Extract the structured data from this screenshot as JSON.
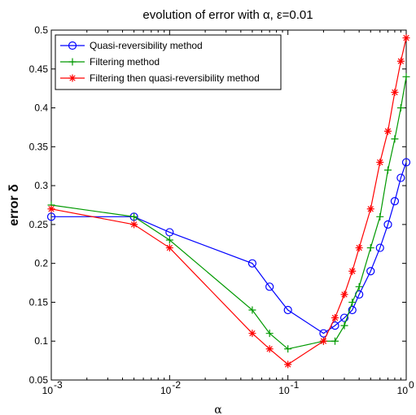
{
  "chart_data": {
    "type": "line",
    "title": "evolution of error with α, ε=0.01",
    "xlabel": "α",
    "ylabel": "error δ",
    "xscale": "log",
    "xlim": [
      0.001,
      1
    ],
    "ylim": [
      0.05,
      0.5
    ],
    "x_ticks": [
      {
        "value": 0.001,
        "base": "10",
        "exp": "-3"
      },
      {
        "value": 0.01,
        "base": "10",
        "exp": "-2"
      },
      {
        "value": 0.1,
        "base": "10",
        "exp": "-1"
      },
      {
        "value": 1,
        "base": "10",
        "exp": "0"
      }
    ],
    "y_ticks": [
      "0.05",
      "0.1",
      "0.15",
      "0.2",
      "0.25",
      "0.3",
      "0.35",
      "0.4",
      "0.45",
      "0.5"
    ],
    "grid": false,
    "legend_position": "top-left",
    "series": [
      {
        "name": "Quasi-reversibility method",
        "color": "#0000ff",
        "marker": "circle",
        "x": [
          0.001,
          0.005,
          0.01,
          0.05,
          0.07,
          0.1,
          0.2,
          0.25,
          0.3,
          0.35,
          0.4,
          0.5,
          0.6,
          0.7,
          0.8,
          0.9,
          1.0
        ],
        "y": [
          0.26,
          0.26,
          0.24,
          0.2,
          0.17,
          0.14,
          0.11,
          0.12,
          0.13,
          0.14,
          0.16,
          0.19,
          0.22,
          0.25,
          0.28,
          0.31,
          0.33
        ]
      },
      {
        "name": "Filtering method",
        "color": "#009900",
        "marker": "plus",
        "x": [
          0.001,
          0.005,
          0.01,
          0.05,
          0.07,
          0.1,
          0.2,
          0.25,
          0.3,
          0.35,
          0.4,
          0.5,
          0.6,
          0.7,
          0.8,
          0.9,
          1.0
        ],
        "y": [
          0.275,
          0.26,
          0.23,
          0.14,
          0.11,
          0.09,
          0.1,
          0.1,
          0.12,
          0.15,
          0.17,
          0.22,
          0.26,
          0.32,
          0.36,
          0.4,
          0.44
        ]
      },
      {
        "name": "Filtering then quasi-reversibility method",
        "color": "#ff0000",
        "marker": "star",
        "x": [
          0.001,
          0.005,
          0.01,
          0.05,
          0.07,
          0.1,
          0.2,
          0.25,
          0.3,
          0.35,
          0.4,
          0.5,
          0.6,
          0.7,
          0.8,
          0.9,
          1.0
        ],
        "y": [
          0.27,
          0.25,
          0.22,
          0.11,
          0.09,
          0.07,
          0.1,
          0.13,
          0.16,
          0.19,
          0.22,
          0.27,
          0.33,
          0.37,
          0.42,
          0.46,
          0.49
        ]
      }
    ]
  }
}
